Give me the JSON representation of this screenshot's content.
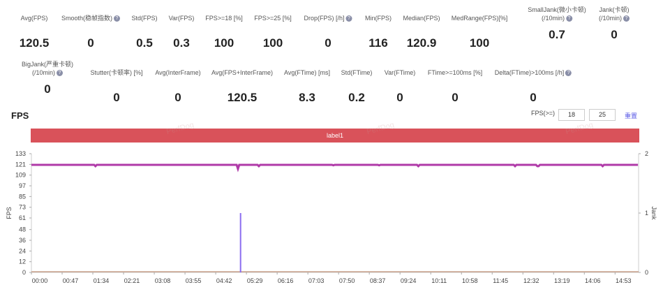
{
  "stats_row1": [
    {
      "label": "Avg(FPS)",
      "value": "120.5",
      "help": false
    },
    {
      "label": "Smooth(稳帧指数)",
      "value": "0",
      "help": true
    },
    {
      "label": "Std(FPS)",
      "value": "0.5",
      "help": false
    },
    {
      "label": "Var(FPS)",
      "value": "0.3",
      "help": false
    },
    {
      "label": "FPS>=18 [%]",
      "value": "100",
      "help": false
    },
    {
      "label": "FPS>=25 [%]",
      "value": "100",
      "help": false
    },
    {
      "label": "Drop(FPS) [/h]",
      "value": "0",
      "help": true
    },
    {
      "label": "Min(FPS)",
      "value": "116",
      "help": false
    },
    {
      "label": "Median(FPS)",
      "value": "120.9",
      "help": false
    },
    {
      "label": "MedRange(FPS)[%]",
      "value": "100",
      "help": false
    },
    {
      "label": "SmallJank(微小卡顿)",
      "label2": "(/10min)",
      "value": "0.7",
      "help": true
    },
    {
      "label": "Jank(卡顿)",
      "label2": "(/10min)",
      "value": "0",
      "help": true
    }
  ],
  "stats_row2": [
    {
      "label": "BigJank(严重卡顿)",
      "label2": "(/10min)",
      "value": "0",
      "help": true
    },
    {
      "label": "Stutter(卡顿率) [%]",
      "value": "0",
      "help": false
    },
    {
      "label": "Avg(InterFrame)",
      "value": "0",
      "help": false
    },
    {
      "label": "Avg(FPS+InterFrame)",
      "value": "120.5",
      "help": false
    },
    {
      "label": "Avg(FTime) [ms]",
      "value": "8.3",
      "help": false
    },
    {
      "label": "Std(FTime)",
      "value": "0.2",
      "help": false
    },
    {
      "label": "Var(FTime)",
      "value": "0",
      "help": false
    },
    {
      "label": "FTime>=100ms [%]",
      "value": "0",
      "help": false
    },
    {
      "label": "Delta(FTime)>100ms [/h]",
      "value": "0",
      "help": true
    }
  ],
  "chart_title": "FPS",
  "threshold": {
    "label": "FPS(>=)",
    "v1": "18",
    "v2": "25",
    "reset": "重置"
  },
  "band_label": "label1",
  "watermark": "PerfDog",
  "chart_data": {
    "type": "line",
    "ylabel": "FPS",
    "y2label": "Jank",
    "ylim": [
      0,
      133
    ],
    "y2lim": [
      0,
      2
    ],
    "yticks": [
      "0",
      "12",
      "24",
      "36",
      "48",
      "61",
      "73",
      "85",
      "97",
      "109",
      "121",
      "133"
    ],
    "y2ticks": [
      "0",
      "1",
      "2"
    ],
    "xticks": [
      "00:00",
      "00:47",
      "01:34",
      "02:21",
      "03:08",
      "03:55",
      "04:42",
      "05:29",
      "06:16",
      "07:03",
      "07:50",
      "08:37",
      "09:24",
      "10:11",
      "10:58",
      "11:45",
      "12:32",
      "13:19",
      "14:06",
      "14:53"
    ],
    "duration_s": 929,
    "series": [
      {
        "name": "FPS",
        "color": "#b03aa8",
        "baseline": 120.5,
        "dips": [
          [
            98,
            119
          ],
          [
            316,
            116
          ],
          [
            348,
            119
          ],
          [
            462,
            120
          ],
          [
            532,
            120
          ],
          [
            592,
            119
          ],
          [
            740,
            119
          ],
          [
            775,
            119
          ],
          [
            874,
            119
          ]
        ]
      },
      {
        "name": "Jank",
        "color": "#8b6cf0",
        "points": [
          [
            320,
            1
          ]
        ]
      },
      {
        "name": "InterFrame",
        "color": "#c8a08a",
        "baseline": 0
      }
    ]
  }
}
